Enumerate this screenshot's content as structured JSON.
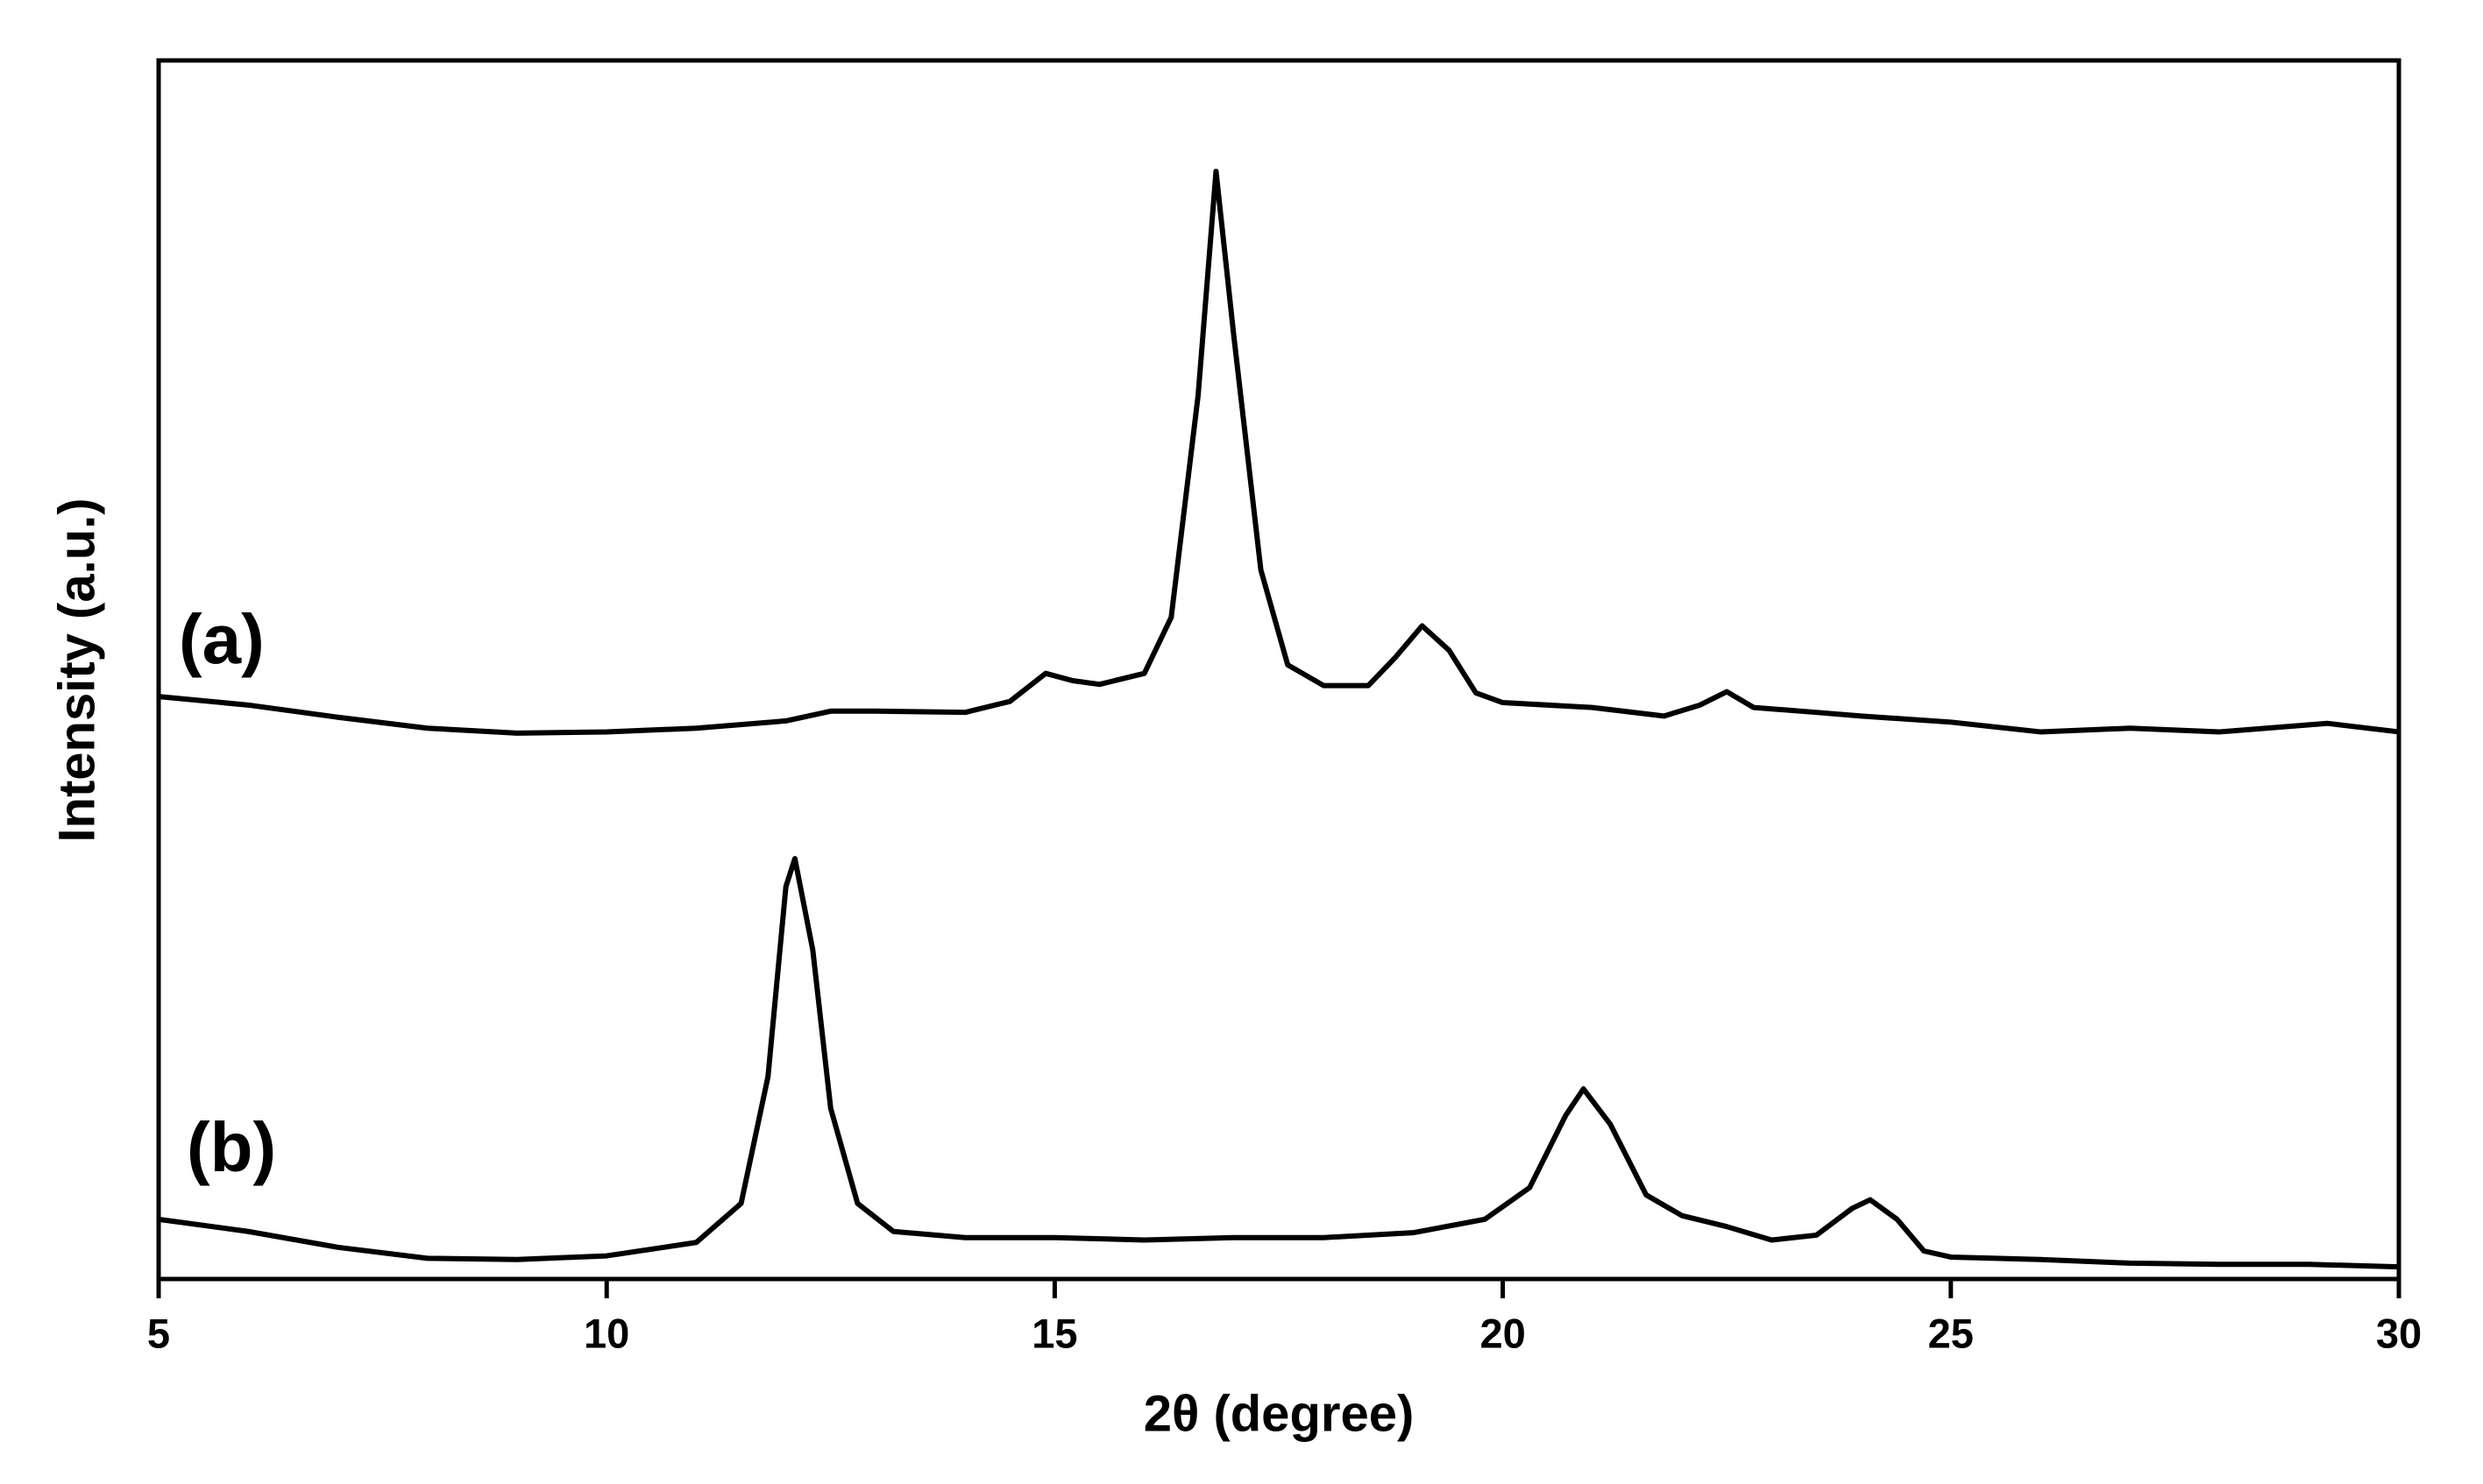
{
  "chart_data": {
    "type": "line",
    "xlabel": "2θ (degree)",
    "ylabel": "Intensity (a.u.)",
    "annotations": [
      "(a)",
      "(b)"
    ],
    "xlim": [
      5,
      30
    ],
    "xticks": [
      5,
      10,
      15,
      20,
      25,
      30
    ],
    "ylim": [
      0,
      100
    ],
    "series": [
      {
        "name": "(a)",
        "color": "#000000",
        "x": [
          5,
          6,
          7,
          8,
          9,
          10,
          11,
          12,
          12.5,
          13,
          14,
          14.5,
          14.9,
          15.2,
          15.5,
          16,
          16.3,
          16.6,
          16.8,
          17.0,
          17.3,
          17.6,
          18,
          18.5,
          18.8,
          19.1,
          19.4,
          19.7,
          20,
          21,
          21.8,
          22.2,
          22.5,
          22.8,
          23.5,
          24,
          25,
          26,
          27,
          28,
          29.2,
          30
        ],
        "values": [
          47.8,
          47.1,
          46.1,
          45.2,
          44.8,
          44.9,
          45.2,
          45.8,
          46.6,
          46.6,
          46.5,
          47.4,
          49.7,
          49.1,
          48.8,
          49.7,
          54.3,
          72.5,
          90.9,
          77.3,
          58.2,
          50.4,
          48.7,
          48.7,
          51.0,
          53.6,
          51.6,
          48.1,
          47.3,
          46.9,
          46.2,
          47.1,
          48.2,
          46.9,
          46.5,
          46.2,
          45.7,
          44.9,
          45.2,
          44.9,
          45.6,
          44.9
        ]
      },
      {
        "name": "(b)",
        "color": "#000000",
        "x": [
          5,
          6,
          7,
          8,
          9,
          10,
          11,
          11.5,
          11.8,
          12.0,
          12.1,
          12.3,
          12.5,
          12.8,
          13.2,
          14,
          15,
          16,
          17,
          18,
          19,
          19.8,
          20.3,
          20.7,
          20.9,
          21.2,
          21.6,
          22,
          22.5,
          23,
          23.5,
          23.9,
          24.1,
          24.4,
          24.7,
          25,
          26,
          27,
          28,
          29,
          30
        ],
        "values": [
          4.9,
          3.9,
          2.6,
          1.7,
          1.6,
          1.9,
          3.0,
          6.2,
          16.6,
          32.2,
          34.5,
          27.0,
          14.0,
          6.2,
          3.9,
          3.4,
          3.4,
          3.2,
          3.4,
          3.4,
          3.8,
          4.9,
          7.5,
          13.4,
          15.6,
          12.7,
          6.9,
          5.2,
          4.3,
          3.2,
          3.6,
          5.8,
          6.5,
          4.9,
          2.3,
          1.8,
          1.6,
          1.3,
          1.2,
          1.2,
          1.0
        ]
      }
    ]
  }
}
